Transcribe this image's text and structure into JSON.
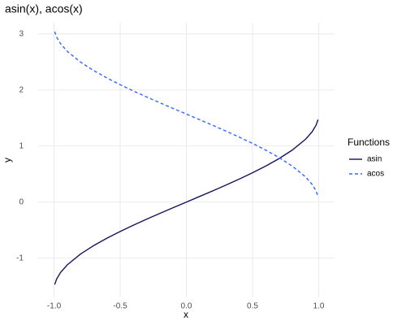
{
  "chart_data": {
    "type": "line",
    "title": "asin(x), acos(x)",
    "x_label": "x",
    "y_label": "y",
    "x": [
      -0.995,
      -0.98,
      -0.95,
      -0.9,
      -0.8,
      -0.7,
      -0.6,
      -0.5,
      -0.4,
      -0.3,
      -0.2,
      -0.1,
      0,
      0.1,
      0.2,
      0.3,
      0.4,
      0.5,
      0.6,
      0.7,
      0.8,
      0.9,
      0.95,
      0.98,
      0.995
    ],
    "series": [
      {
        "name": "asin",
        "color": "#14145e",
        "dash": false,
        "values": [
          -1.4708,
          -1.3705,
          -1.2532,
          -1.1198,
          -0.9273,
          -0.7754,
          -0.6435,
          -0.5236,
          -0.4115,
          -0.3047,
          -0.2014,
          -0.1002,
          0,
          0.1002,
          0.2014,
          0.3047,
          0.4115,
          0.5236,
          0.6435,
          0.7754,
          0.9273,
          1.1198,
          1.2532,
          1.3705,
          1.4708
        ]
      },
      {
        "name": "acos",
        "color": "#3366ff",
        "dash": true,
        "values": [
          3.0416,
          2.9413,
          2.824,
          2.6906,
          2.4981,
          2.3462,
          2.2143,
          2.0944,
          1.9823,
          1.8755,
          1.7722,
          1.671,
          1.5708,
          1.4706,
          1.3694,
          1.2661,
          1.1593,
          1.0472,
          0.9273,
          0.7954,
          0.6435,
          0.451,
          0.3176,
          0.2003,
          0.1
        ]
      }
    ],
    "legend_title": "Functions",
    "xlim": [
      -1.12,
      1.12
    ],
    "ylim": [
      -1.7,
      3.2
    ],
    "xticks": [
      {
        "value": -1,
        "label": "-1.0"
      },
      -0.5,
      {
        "value": 0,
        "label": "0.0"
      },
      0.5,
      {
        "value": 1,
        "label": "1.0"
      }
    ],
    "yticks": [
      -1,
      0,
      1,
      2,
      3
    ],
    "grid": true
  }
}
